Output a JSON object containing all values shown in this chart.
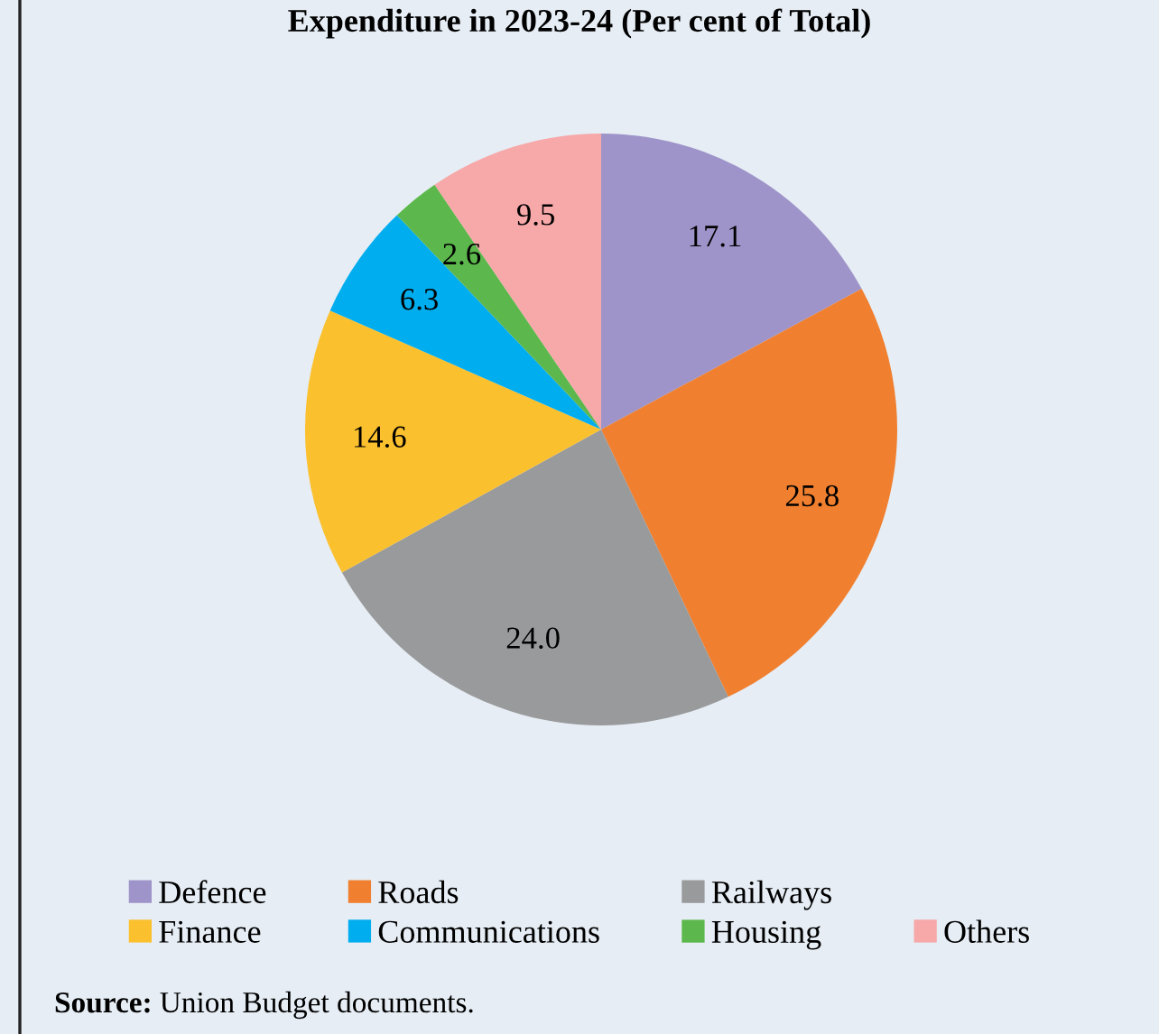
{
  "chart_data": {
    "type": "pie",
    "title": "Expenditure in 2023-24 (Per cent of Total)",
    "categories": [
      "Defence",
      "Roads",
      "Railways",
      "Finance",
      "Communications",
      "Housing",
      "Others"
    ],
    "values": [
      17.1,
      25.8,
      24.0,
      14.6,
      6.3,
      2.6,
      9.5
    ],
    "colors": [
      "#9e94c9",
      "#f07f2f",
      "#999a9c",
      "#fbc02d",
      "#00adef",
      "#5cb84c",
      "#f7a8a8"
    ],
    "value_labels": [
      "17.1",
      "25.8",
      "24.0",
      "14.6",
      "6.3",
      "2.6",
      "9.5"
    ],
    "legend": "bottom",
    "annotations": [
      "Source: Union Budget documents."
    ]
  }
}
